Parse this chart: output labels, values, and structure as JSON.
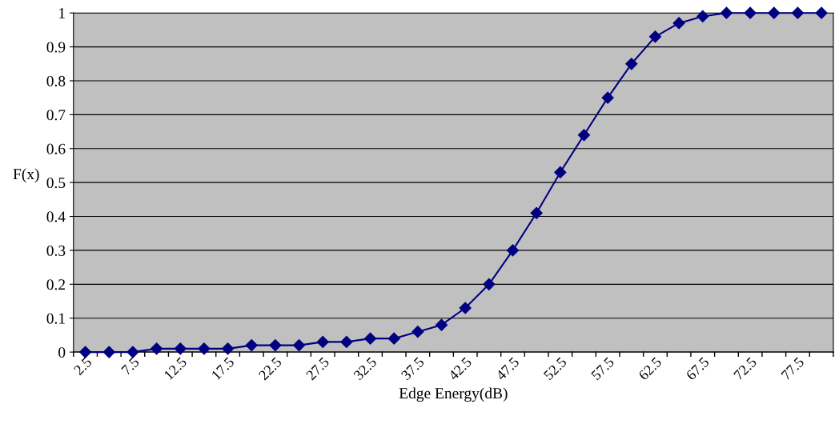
{
  "chart_data": {
    "type": "line",
    "xlabel": "Edge Energy(dB)",
    "ylabel": "F(x)",
    "categories": [
      "2.5",
      null,
      "7.5",
      null,
      "12.5",
      null,
      "17.5",
      null,
      "22.5",
      null,
      "27.5",
      null,
      "32.5",
      null,
      "37.5",
      null,
      "42.5",
      null,
      "47.5",
      null,
      "52.5",
      null,
      "57.5",
      null,
      "62.5",
      null,
      "67.5",
      null,
      "72.5",
      null,
      "77.5",
      null
    ],
    "series": [
      {
        "color": "#000080",
        "values": [
          0,
          0,
          0,
          0.01,
          0.01,
          0.01,
          0.01,
          0.02,
          0.02,
          0.02,
          0.03,
          0.03,
          0.04,
          0.04,
          0.06,
          0.08,
          0.13,
          0.2,
          0.3,
          0.41,
          0.53,
          0.64,
          0.75,
          0.85,
          0.93,
          0.97,
          0.99,
          1,
          1,
          1,
          1,
          1
        ]
      }
    ],
    "ylim": [
      0,
      1
    ],
    "yticks": [
      0,
      0.1,
      0.2,
      0.3,
      0.4,
      0.5,
      0.6,
      0.7,
      0.8,
      0.9,
      1
    ],
    "grid": "y",
    "marker": "diamond",
    "line_style": "solid",
    "legend": false
  }
}
